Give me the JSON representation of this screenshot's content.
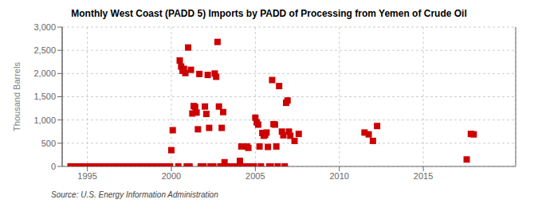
{
  "chart_data": {
    "type": "scatter",
    "title": "Monthly West Coast (PADD 5) Imports by PADD of Processing from Yemen of Crude Oil",
    "ylabel": "Thousand Barrels",
    "annotation": "Source: U.S. Energy Information Administration",
    "color": "#cc0000",
    "marker": "square",
    "grid": true,
    "xlim": [
      1993.5,
      2020.5
    ],
    "ylim": [
      0,
      3000
    ],
    "xticks": [
      1995,
      2000,
      2005,
      2010,
      2015
    ],
    "yticks": [
      0,
      500,
      {
        "value": 1000,
        "label": "1,000"
      },
      {
        "value": 1500,
        "label": "1,500"
      },
      {
        "value": 2000,
        "label": "2,000"
      },
      {
        "value": 2500,
        "label": "2,500"
      },
      {
        "value": 3000,
        "label": "3,000"
      }
    ],
    "x": [
      1994.0,
      1994.083,
      1994.167,
      1994.25,
      1994.333,
      1994.417,
      1994.5,
      1994.583,
      1994.667,
      1994.75,
      1994.833,
      1994.917,
      1995.0,
      1995.083,
      1995.167,
      1995.25,
      1995.333,
      1995.417,
      1995.5,
      1995.583,
      1995.667,
      1995.75,
      1995.833,
      1995.917,
      1996.0,
      1996.083,
      1996.167,
      1996.25,
      1996.333,
      1996.417,
      1996.5,
      1996.583,
      1996.667,
      1996.75,
      1996.833,
      1996.917,
      1997.0,
      1997.083,
      1997.167,
      1997.25,
      1997.333,
      1997.417,
      1997.5,
      1997.583,
      1997.667,
      1997.75,
      1997.833,
      1997.917,
      1998.0,
      1998.083,
      1998.167,
      1998.25,
      1998.333,
      1998.417,
      1998.5,
      1998.583,
      1998.667,
      1998.75,
      1998.833,
      1998.917,
      1999.0,
      1999.083,
      1999.167,
      1999.25,
      1999.333,
      1999.417,
      1999.5,
      1999.583,
      1999.667,
      1999.75,
      1999.833,
      1999.917,
      2000.0,
      2000.083,
      2000.417,
      2000.5,
      2000.583,
      2000.667,
      2000.75,
      2000.833,
      2000.917,
      2001.0,
      2001.083,
      2001.167,
      2001.25,
      2001.333,
      2001.417,
      2001.5,
      2001.583,
      2001.667,
      2001.75,
      2001.833,
      2001.917,
      2002.0,
      2002.083,
      2002.167,
      2002.25,
      2002.333,
      2002.5,
      2002.583,
      2002.667,
      2002.75,
      2002.833,
      2002.917,
      2003.0,
      2003.083,
      2003.167,
      2003.25,
      2003.417,
      2003.5,
      2003.583,
      2003.667,
      2003.75,
      2003.833,
      2003.917,
      2004.0,
      2004.083,
      2004.167,
      2004.25,
      2004.333,
      2004.417,
      2004.5,
      2004.583,
      2004.667,
      2004.75,
      2004.833,
      2004.917,
      2005.0,
      2005.083,
      2005.167,
      2005.25,
      2005.333,
      2005.417,
      2005.5,
      2005.583,
      2005.667,
      2005.75,
      2005.833,
      2005.917,
      2006.0,
      2006.083,
      2006.167,
      2006.25,
      2006.333,
      2006.417,
      2006.583,
      2006.667,
      2006.75,
      2006.833,
      2006.917,
      2007.0,
      2007.083,
      2007.333,
      2007.583,
      2011.5,
      2011.75,
      2012.0,
      2012.25,
      2017.583,
      2017.833,
      2018.0
    ],
    "values": [
      0,
      0,
      0,
      0,
      0,
      0,
      0,
      0,
      0,
      0,
      0,
      0,
      0,
      0,
      0,
      0,
      0,
      0,
      0,
      0,
      0,
      0,
      0,
      0,
      0,
      0,
      0,
      0,
      0,
      0,
      0,
      0,
      0,
      0,
      0,
      0,
      0,
      0,
      0,
      0,
      0,
      0,
      0,
      0,
      0,
      0,
      0,
      0,
      0,
      0,
      0,
      0,
      0,
      0,
      0,
      0,
      0,
      0,
      0,
      0,
      0,
      0,
      0,
      0,
      0,
      0,
      0,
      0,
      0,
      0,
      0,
      0,
      350,
      780,
      0,
      2280,
      2150,
      2060,
      2100,
      2010,
      0,
      2560,
      0,
      2080,
      1140,
      1300,
      1280,
      1160,
      800,
      1990,
      0,
      0,
      0,
      1290,
      1130,
      1970,
      830,
      0,
      0,
      2000,
      1930,
      2680,
      1290,
      0,
      830,
      1170,
      90,
      0,
      0,
      0,
      0,
      0,
      0,
      0,
      0,
      0,
      120,
      430,
      0,
      0,
      0,
      430,
      400,
      0,
      0,
      0,
      0,
      1050,
      950,
      900,
      430,
      0,
      720,
      660,
      680,
      730,
      420,
      0,
      0,
      1860,
      910,
      900,
      430,
      0,
      1730,
      750,
      670,
      0,
      1370,
      1420,
      750,
      660,
      550,
      700,
      730,
      690,
      550,
      870,
      150,
      700,
      690
    ]
  }
}
